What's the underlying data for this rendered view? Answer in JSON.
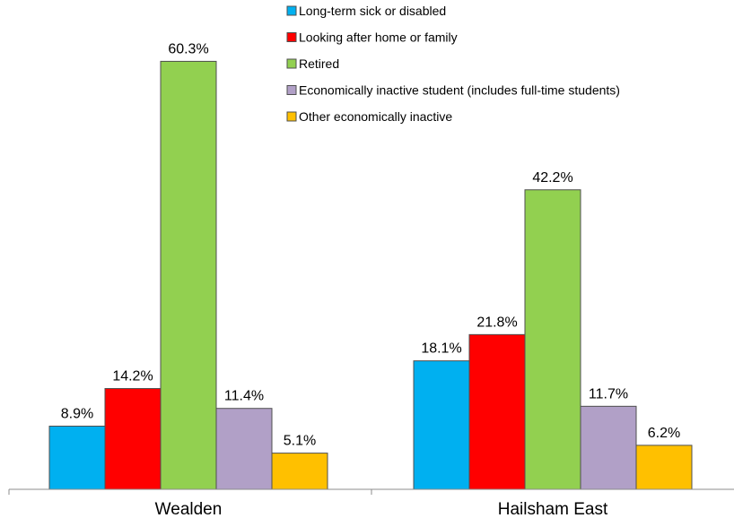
{
  "chart_data": {
    "type": "bar",
    "title": "",
    "xlabel": "",
    "ylabel": "",
    "ylim": [
      0,
      65
    ],
    "grid": false,
    "legend_position": "top-right",
    "categories": [
      "Wealden",
      "Hailsham East"
    ],
    "series": [
      {
        "name": "Long-term sick or disabled",
        "color": "#00B0F0",
        "values": [
          8.9,
          18.1
        ],
        "labels": [
          "8.9%",
          "18.1%"
        ]
      },
      {
        "name": "Looking after home or family",
        "color": "#FF0000",
        "values": [
          14.2,
          21.8
        ],
        "labels": [
          "14.2%",
          "21.8%"
        ]
      },
      {
        "name": "Retired",
        "color": "#92D050",
        "values": [
          60.3,
          42.2
        ],
        "labels": [
          "60.3%",
          "42.2%"
        ]
      },
      {
        "name": "Economically inactive student (includes full-time students)",
        "color": "#B1A0C7",
        "values": [
          11.4,
          11.7
        ],
        "labels": [
          "11.4%",
          "11.7%"
        ]
      },
      {
        "name": "Other economically inactive",
        "color": "#FFC000",
        "values": [
          5.1,
          6.2
        ],
        "labels": [
          "5.1%",
          "6.2%"
        ]
      }
    ]
  }
}
